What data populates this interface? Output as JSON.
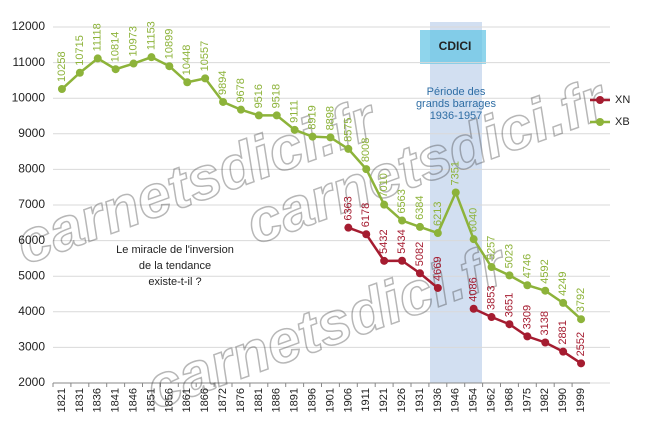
{
  "chart_data": {
    "type": "line",
    "categories": [
      "1821",
      "1831",
      "1836",
      "1841",
      "1846",
      "1851",
      "1856",
      "1861",
      "1866",
      "1872",
      "1876",
      "1881",
      "1886",
      "1891",
      "1896",
      "1901",
      "1906",
      "1911",
      "1921",
      "1926",
      "1931",
      "1936",
      "1946",
      "1954",
      "1962",
      "1968",
      "1975",
      "1982",
      "1990",
      "1999"
    ],
    "series": [
      {
        "name": "XN",
        "color": "#a51c30",
        "values": [
          null,
          null,
          null,
          null,
          null,
          null,
          null,
          null,
          null,
          null,
          null,
          null,
          null,
          null,
          null,
          null,
          6363,
          6178,
          5432,
          5434,
          5082,
          4669,
          null,
          4086,
          3853,
          3651,
          3309,
          3138,
          2881,
          2552
        ]
      },
      {
        "name": "XB",
        "color": "#8db33a",
        "values": [
          10258,
          10715,
          11118,
          10814,
          10973,
          11153,
          10899,
          10448,
          10557,
          9894,
          9678,
          9516,
          9518,
          9111,
          8919,
          8898,
          8575,
          8008,
          7010,
          6563,
          6384,
          6213,
          7351,
          6040,
          5257,
          5023,
          4746,
          4592,
          4249,
          3792
        ]
      }
    ],
    "ylim": [
      2000,
      12000
    ],
    "yticks": [
      2000,
      3000,
      4000,
      5000,
      6000,
      7000,
      8000,
      9000,
      10000,
      11000,
      12000
    ],
    "grid": true,
    "legend": "right",
    "annotations": {
      "question": [
        "Le miracle de l'inversion",
        "de la tendance",
        "existe-t-il ?"
      ],
      "period": [
        "Période des",
        "grands barrages",
        "1936-1957"
      ],
      "logo": "CDICI",
      "watermark": "carnetsdici.fr"
    }
  }
}
